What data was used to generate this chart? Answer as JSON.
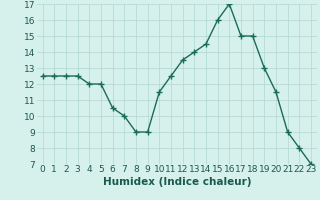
{
  "x": [
    0,
    1,
    2,
    3,
    4,
    5,
    6,
    7,
    8,
    9,
    10,
    11,
    12,
    13,
    14,
    15,
    16,
    17,
    18,
    19,
    20,
    21,
    22,
    23
  ],
  "y": [
    12.5,
    12.5,
    12.5,
    12.5,
    12.0,
    12.0,
    10.5,
    10.0,
    9.0,
    9.0,
    11.5,
    12.5,
    13.5,
    14.0,
    14.5,
    16.0,
    17.0,
    15.0,
    15.0,
    13.0,
    11.5,
    9.0,
    8.0,
    7.0
  ],
  "line_color": "#1a6b5a",
  "marker": "+",
  "marker_size": 4,
  "linewidth": 1.0,
  "xlabel": "Humidex (Indice chaleur)",
  "xlim": [
    -0.5,
    23.5
  ],
  "ylim": [
    7,
    17
  ],
  "yticks": [
    7,
    8,
    9,
    10,
    11,
    12,
    13,
    14,
    15,
    16,
    17
  ],
  "xticks": [
    0,
    1,
    2,
    3,
    4,
    5,
    6,
    7,
    8,
    9,
    10,
    11,
    12,
    13,
    14,
    15,
    16,
    17,
    18,
    19,
    20,
    21,
    22,
    23
  ],
  "background_color": "#d6f0ec",
  "grid_color": "#b0d8d0",
  "font_color": "#1a5a50",
  "xlabel_fontsize": 7.5,
  "tick_fontsize": 6.5
}
